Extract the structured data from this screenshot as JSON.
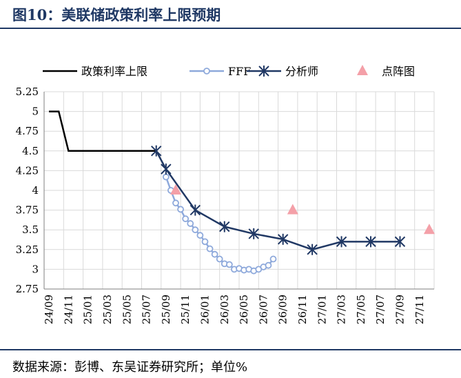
{
  "title": "图10：美联储政策利率上限预期",
  "source": "数据来源：彭博、东吴证券研究所；单位%",
  "chart_data": {
    "type": "line",
    "x": [
      "24/09",
      "24/10",
      "24/11",
      "24/12",
      "25/01",
      "25/02",
      "25/03",
      "25/04",
      "25/05",
      "25/06",
      "25/07",
      "25/08",
      "25/09",
      "25/10",
      "25/11",
      "25/12",
      "26/01",
      "26/02",
      "26/03",
      "26/04",
      "26/05",
      "26/06",
      "26/07",
      "26/08",
      "26/09",
      "26/10",
      "26/11",
      "26/12",
      "27/01",
      "27/02",
      "27/03",
      "27/04",
      "27/05",
      "27/06",
      "27/07",
      "27/08",
      "27/09",
      "27/10",
      "27/11",
      "27/12"
    ],
    "x_tick_labels": [
      "24/09",
      "24/11",
      "25/01",
      "25/03",
      "25/05",
      "25/07",
      "25/09",
      "25/11",
      "26/01",
      "26/03",
      "26/05",
      "26/07",
      "26/09",
      "26/11",
      "27/01",
      "27/03",
      "27/05",
      "27/07",
      "27/09",
      "27/11"
    ],
    "ylim": [
      2.75,
      5.25
    ],
    "y_ticks": [
      "2.75",
      "3",
      "3.25",
      "3.5",
      "3.75",
      "4",
      "4.25",
      "4.5",
      "4.75",
      "5",
      "5.25"
    ],
    "grid": true,
    "legend_position": "top",
    "series": [
      {
        "name": "政策利率上限",
        "color": "#000000",
        "marker": "none",
        "points": [
          [
            "24/09",
            5.0
          ],
          [
            "24/10",
            5.0
          ],
          [
            "24/11",
            4.5
          ],
          [
            "24/12",
            4.5
          ],
          [
            "25/01",
            4.5
          ],
          [
            "25/02",
            4.5
          ],
          [
            "25/03",
            4.5
          ],
          [
            "25/04",
            4.5
          ],
          [
            "25/05",
            4.5
          ],
          [
            "25/06",
            4.5
          ],
          [
            "25/07",
            4.5
          ],
          [
            "25/08",
            4.5
          ]
        ]
      },
      {
        "name": "FFF",
        "color": "#8ea9db",
        "marker": "circle",
        "points": [
          [
            "25/09",
            4.17
          ],
          [
            "25/09b",
            4.0
          ],
          [
            "25/10",
            3.84
          ],
          [
            "25/10b",
            3.76
          ],
          [
            "25/11",
            3.64
          ],
          [
            "25/11b",
            3.58
          ],
          [
            "25/12",
            3.5
          ],
          [
            "25/12b",
            3.43
          ],
          [
            "26/01",
            3.35
          ],
          [
            "26/01b",
            3.26
          ],
          [
            "26/02",
            3.19
          ],
          [
            "26/02b",
            3.13
          ],
          [
            "26/03",
            3.07
          ],
          [
            "26/03b",
            3.06
          ],
          [
            "26/04",
            3.0
          ],
          [
            "26/04b",
            3.01
          ],
          [
            "26/05",
            2.99
          ],
          [
            "26/05b",
            3.0
          ],
          [
            "26/06",
            2.98
          ],
          [
            "26/06b",
            3.0
          ],
          [
            "26/07",
            3.03
          ],
          [
            "26/07b",
            3.05
          ],
          [
            "26/08",
            3.13
          ]
        ]
      },
      {
        "name": "分析师",
        "color": "#203864",
        "marker": "star",
        "points": [
          [
            "25/08",
            4.5
          ],
          [
            "25/09",
            4.27
          ],
          [
            "25/12",
            3.75
          ],
          [
            "26/03",
            3.54
          ],
          [
            "26/06",
            3.45
          ],
          [
            "26/09",
            3.38
          ],
          [
            "26/12",
            3.25
          ],
          [
            "27/03",
            3.35
          ],
          [
            "27/06",
            3.35
          ],
          [
            "27/09",
            3.35
          ]
        ]
      },
      {
        "name": "点阵图",
        "color": "#f4a0a8",
        "marker": "triangle",
        "points": [
          [
            "25/10",
            4.0
          ],
          [
            "26/10",
            3.75
          ],
          [
            "27/12",
            3.5
          ]
        ]
      }
    ]
  }
}
